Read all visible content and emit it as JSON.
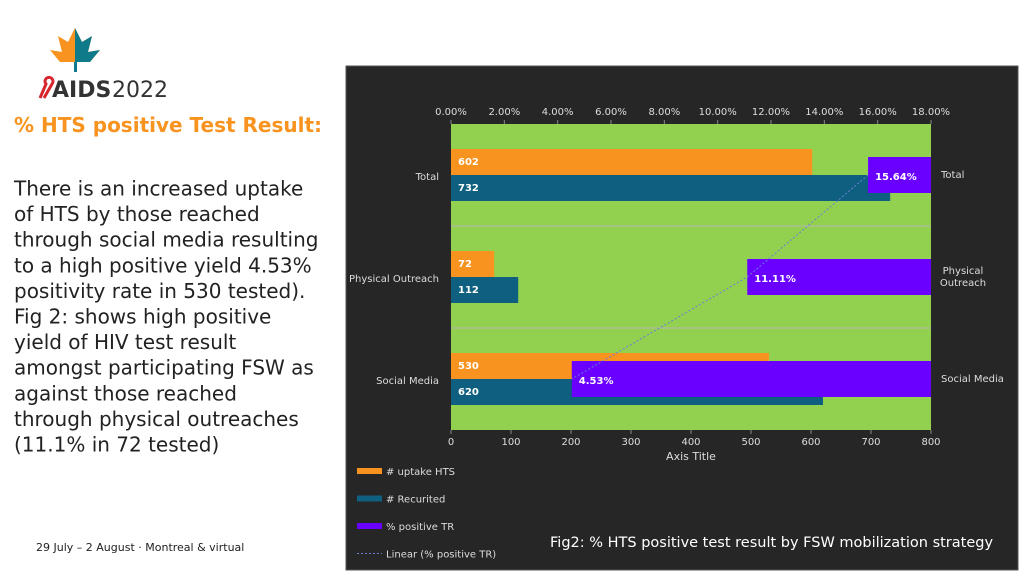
{
  "logo": {
    "name": "AIDS",
    "year": "2022"
  },
  "heading": "% HTS positive Test Result:",
  "body_lines": [
    "There is an increased uptake",
    "of HTS by those reached",
    "through social media resulting",
    "to a high positive yield 4.53%",
    "positivity rate in 530 tested).",
    "Fig 2: shows high positive",
    "yield of HIV test result",
    "amongst participating FSW as",
    "against those reached",
    "through physical outreaches",
    "(11.1% in 72 tested)"
  ],
  "footer": "29 July – 2 August · Montreal & virtual",
  "caption": "Fig2: % HTS positive test result by FSW mobilization strategy",
  "chart_data": {
    "type": "bar",
    "orientation": "horizontal",
    "categories": [
      "Total",
      "Physical Outreach",
      "Social Media"
    ],
    "series": [
      {
        "name": "# uptake HTS",
        "color": "#f7931e",
        "values": [
          602,
          72,
          530
        ]
      },
      {
        "name": "# Recurited",
        "color": "#0f6080",
        "values": [
          732,
          112,
          620
        ]
      },
      {
        "name": "% positive TR",
        "color": "#6a00ff",
        "axis": "x2",
        "values": [
          15.64,
          11.11,
          4.53
        ],
        "value_labels": [
          "15.64%",
          "11.11%",
          "4.53%"
        ]
      }
    ],
    "trendline": {
      "name": "Linear (% positive TR)",
      "color": "#6a7fd8"
    },
    "xlim": [
      0,
      800
    ],
    "xticks": [
      0,
      100,
      200,
      300,
      400,
      500,
      600,
      700,
      800
    ],
    "x2lim": [
      0,
      18
    ],
    "x2ticks": [
      {
        "value": 0,
        "label": "0.00%"
      },
      {
        "value": 2,
        "label": "2.00%"
      },
      {
        "value": 4,
        "label": "4.00%"
      },
      {
        "value": 6,
        "label": "6.00%"
      },
      {
        "value": 8,
        "label": "8.00%"
      },
      {
        "value": 10,
        "label": "10.00%"
      },
      {
        "value": 12,
        "label": "12.00%"
      },
      {
        "value": 14,
        "label": "14.00%"
      },
      {
        "value": 16,
        "label": "16.00%"
      },
      {
        "value": 18,
        "label": "18.00%"
      }
    ],
    "xlabel": "Axis Title",
    "plot_color": "#92d050"
  }
}
